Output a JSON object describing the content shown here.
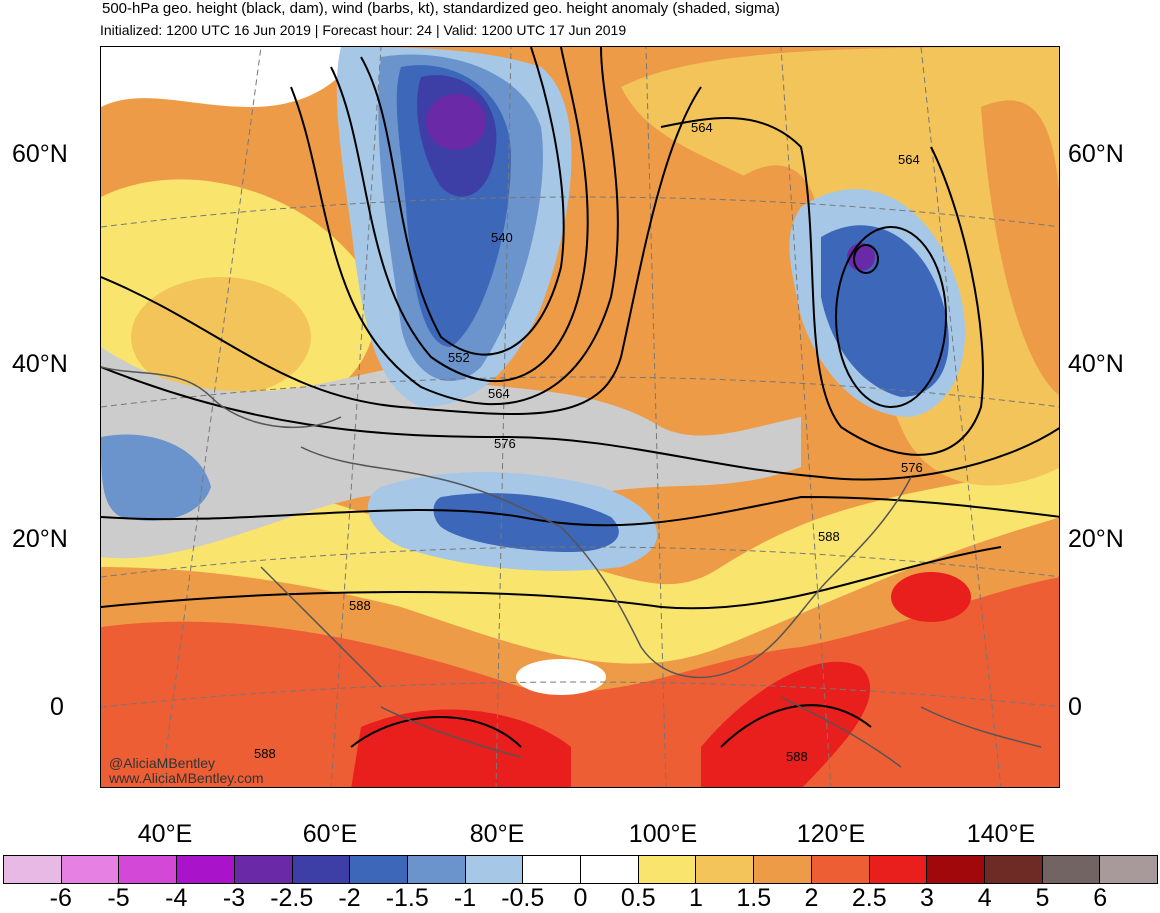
{
  "title": "500-hPa geo. height (black, dam), wind (barbs, kt), standardized geo. height anomaly (shaded, sigma)",
  "subtitle": "Initialized: 1200 UTC 16 Jun 2019 | Forecast hour: 24 | Valid: 1200 UTC 17 Jun 2019",
  "lat_labels": [
    "60°N",
    "40°N",
    "20°N",
    "0"
  ],
  "lon_labels": [
    "40°E",
    "60°E",
    "80°E",
    "100°E",
    "120°E",
    "140°E"
  ],
  "contour_labels": [
    "540",
    "552",
    "564",
    "576",
    "588",
    "564",
    "576",
    "588",
    "588",
    "588",
    "588"
  ],
  "credit": {
    "handle": "@AliciaMBentley",
    "website": "www.AliciaMBentley.com"
  },
  "colorbar": {
    "labels": [
      "-6",
      "-5",
      "-4",
      "-3",
      "-2.5",
      "-2",
      "-1.5",
      "-1",
      "-0.5",
      "0",
      "0.5",
      "1",
      "1.5",
      "2",
      "2.5",
      "3",
      "4",
      "5",
      "6"
    ],
    "colors": [
      "#e9b9e6",
      "#e681e3",
      "#d448d8",
      "#a913c9",
      "#6a2aa8",
      "#3d3fa6",
      "#3d67b8",
      "#6b94cd",
      "#a6c8e6",
      "#ffffff",
      "#ffffff",
      "#f9e56e",
      "#f2c45a",
      "#ee9b47",
      "#ed5e35",
      "#e81f1c",
      "#a0080b",
      "#6e2a25",
      "#716462",
      "#a8999a"
    ]
  }
}
